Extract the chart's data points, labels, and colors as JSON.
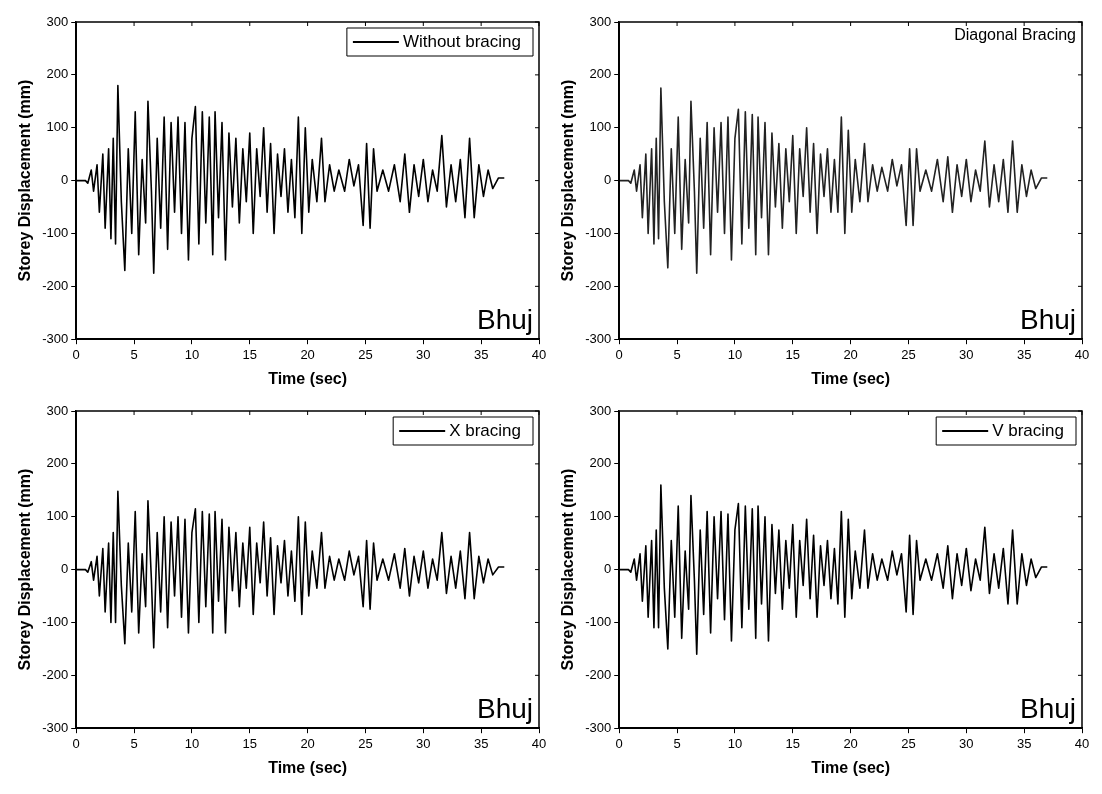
{
  "chart_data": [
    {
      "type": "line",
      "xlabel": "Time (sec)",
      "ylabel": "Storey Displacement (mm)",
      "xlim": [
        0,
        40
      ],
      "xticks": [
        0,
        5,
        10,
        15,
        20,
        25,
        30,
        35,
        40
      ],
      "ylim": [
        -300,
        300
      ],
      "yticks": [
        -300,
        -200,
        -100,
        0,
        100,
        200,
        300
      ],
      "grid": false,
      "legend": "top right",
      "marker": "none",
      "annotations": [
        "Bhuj"
      ],
      "x": [
        0,
        0.8,
        1.0,
        1.3,
        1.5,
        1.8,
        2.0,
        2.3,
        2.5,
        2.8,
        3.0,
        3.2,
        3.4,
        3.6,
        3.9,
        4.2,
        4.5,
        4.8,
        5.1,
        5.4,
        5.7,
        6.0,
        6.2,
        6.5,
        6.7,
        7.0,
        7.3,
        7.6,
        7.9,
        8.2,
        8.5,
        8.8,
        9.1,
        9.4,
        9.7,
        10.0,
        10.3,
        10.6,
        10.9,
        11.2,
        11.5,
        11.8,
        12.0,
        12.3,
        12.6,
        12.9,
        13.2,
        13.5,
        13.8,
        14.1,
        14.4,
        14.7,
        15.0,
        15.3,
        15.6,
        15.9,
        16.2,
        16.5,
        16.8,
        17.1,
        17.4,
        17.7,
        18.0,
        18.3,
        18.6,
        18.9,
        19.2,
        19.5,
        19.8,
        20.1,
        20.4,
        20.8,
        21.2,
        21.5,
        21.9,
        22.3,
        22.7,
        23.2,
        23.6,
        24.0,
        24.4,
        24.8,
        25.1,
        25.4,
        25.7,
        26.0,
        26.5,
        27.0,
        27.5,
        28.0,
        28.4,
        28.8,
        29.2,
        29.6,
        30.0,
        30.4,
        30.8,
        31.2,
        31.6,
        32.0,
        32.4,
        32.8,
        33.2,
        33.6,
        34.0,
        34.4,
        34.8,
        35.2,
        35.6,
        36.0,
        36.5,
        37.0
      ],
      "series": [
        {
          "name": "Without bracing",
          "color": "#000000",
          "values": [
            0,
            0,
            -5,
            20,
            -20,
            30,
            -60,
            50,
            -90,
            60,
            -110,
            80,
            -120,
            180,
            -40,
            -170,
            60,
            -100,
            130,
            -140,
            40,
            -80,
            150,
            -20,
            -175,
            80,
            -90,
            120,
            -130,
            110,
            -60,
            120,
            -100,
            110,
            -150,
            80,
            140,
            -120,
            130,
            -80,
            120,
            -140,
            130,
            -70,
            110,
            -150,
            90,
            -50,
            80,
            -80,
            60,
            -40,
            90,
            -100,
            60,
            -30,
            100,
            -60,
            70,
            -100,
            50,
            -30,
            60,
            -60,
            40,
            -70,
            120,
            -100,
            100,
            -60,
            40,
            -40,
            80,
            -40,
            30,
            -20,
            20,
            -20,
            40,
            -10,
            30,
            -85,
            70,
            -90,
            60,
            -20,
            20,
            -20,
            30,
            -40,
            50,
            -60,
            30,
            -30,
            40,
            -40,
            20,
            -20,
            85,
            -50,
            30,
            -40,
            40,
            -70,
            80,
            -70,
            30,
            -30,
            20,
            -15,
            5,
            5
          ]
        }
      ]
    },
    {
      "type": "line",
      "xlabel": "Time (sec)",
      "ylabel": "Storey Displacement (mm)",
      "xlim": [
        0,
        40
      ],
      "xticks": [
        0,
        5,
        10,
        15,
        20,
        25,
        30,
        35,
        40
      ],
      "ylim": [
        -300,
        300
      ],
      "yticks": [
        -300,
        -200,
        -100,
        0,
        100,
        200,
        300
      ],
      "grid": false,
      "marker": "none",
      "annotations": [
        "Bhuj",
        "Diagonal Bracing"
      ],
      "x": [
        0,
        0.8,
        1.0,
        1.3,
        1.5,
        1.8,
        2.0,
        2.3,
        2.5,
        2.8,
        3.0,
        3.2,
        3.4,
        3.6,
        3.9,
        4.2,
        4.5,
        4.8,
        5.1,
        5.4,
        5.7,
        6.0,
        6.2,
        6.5,
        6.7,
        7.0,
        7.3,
        7.6,
        7.9,
        8.2,
        8.5,
        8.8,
        9.1,
        9.4,
        9.7,
        10.0,
        10.3,
        10.6,
        10.9,
        11.2,
        11.5,
        11.8,
        12.0,
        12.3,
        12.6,
        12.9,
        13.2,
        13.5,
        13.8,
        14.1,
        14.4,
        14.7,
        15.0,
        15.3,
        15.6,
        15.9,
        16.2,
        16.5,
        16.8,
        17.1,
        17.4,
        17.7,
        18.0,
        18.3,
        18.6,
        18.9,
        19.2,
        19.5,
        19.8,
        20.1,
        20.4,
        20.8,
        21.2,
        21.5,
        21.9,
        22.3,
        22.7,
        23.2,
        23.6,
        24.0,
        24.4,
        24.8,
        25.1,
        25.4,
        25.7,
        26.0,
        26.5,
        27.0,
        27.5,
        28.0,
        28.4,
        28.8,
        29.2,
        29.6,
        30.0,
        30.4,
        30.8,
        31.2,
        31.6,
        32.0,
        32.4,
        32.8,
        33.2,
        33.6,
        34.0,
        34.4,
        34.8,
        35.2,
        35.6,
        36.0,
        36.5,
        37.0
      ],
      "series": [
        {
          "color": "#222222",
          "values": [
            0,
            0,
            -5,
            20,
            -20,
            30,
            -70,
            50,
            -100,
            60,
            -120,
            80,
            -110,
            175,
            -40,
            -165,
            60,
            -100,
            120,
            -130,
            40,
            -80,
            150,
            -20,
            -175,
            80,
            -90,
            110,
            -140,
            100,
            -60,
            110,
            -100,
            120,
            -150,
            80,
            135,
            -120,
            130,
            -90,
            125,
            -140,
            120,
            -70,
            110,
            -140,
            90,
            -50,
            70,
            -90,
            60,
            -40,
            85,
            -100,
            60,
            -30,
            100,
            -60,
            70,
            -100,
            50,
            -30,
            60,
            -60,
            40,
            -60,
            120,
            -100,
            95,
            -60,
            40,
            -40,
            70,
            -40,
            30,
            -20,
            25,
            -20,
            40,
            -10,
            30,
            -85,
            60,
            -85,
            60,
            -20,
            20,
            -20,
            40,
            -40,
            45,
            -60,
            30,
            -30,
            40,
            -40,
            20,
            -20,
            75,
            -50,
            30,
            -40,
            40,
            -60,
            75,
            -60,
            30,
            -30,
            20,
            -15,
            5,
            5
          ]
        }
      ]
    },
    {
      "type": "line",
      "xlabel": "Time (sec)",
      "ylabel": "Storey Displacement (mm)",
      "xlim": [
        0,
        40
      ],
      "xticks": [
        0,
        5,
        10,
        15,
        20,
        25,
        30,
        35,
        40
      ],
      "ylim": [
        -300,
        300
      ],
      "yticks": [
        -300,
        -200,
        -100,
        0,
        100,
        200,
        300
      ],
      "grid": false,
      "legend": "top right",
      "marker": "none",
      "annotations": [
        "Bhuj"
      ],
      "x": [
        0,
        0.8,
        1.0,
        1.3,
        1.5,
        1.8,
        2.0,
        2.3,
        2.5,
        2.8,
        3.0,
        3.2,
        3.4,
        3.6,
        3.9,
        4.2,
        4.5,
        4.8,
        5.1,
        5.4,
        5.7,
        6.0,
        6.2,
        6.5,
        6.7,
        7.0,
        7.3,
        7.6,
        7.9,
        8.2,
        8.5,
        8.8,
        9.1,
        9.4,
        9.7,
        10.0,
        10.3,
        10.6,
        10.9,
        11.2,
        11.5,
        11.8,
        12.0,
        12.3,
        12.6,
        12.9,
        13.2,
        13.5,
        13.8,
        14.1,
        14.4,
        14.7,
        15.0,
        15.3,
        15.6,
        15.9,
        16.2,
        16.5,
        16.8,
        17.1,
        17.4,
        17.7,
        18.0,
        18.3,
        18.6,
        18.9,
        19.2,
        19.5,
        19.8,
        20.1,
        20.4,
        20.8,
        21.2,
        21.5,
        21.9,
        22.3,
        22.7,
        23.2,
        23.6,
        24.0,
        24.4,
        24.8,
        25.1,
        25.4,
        25.7,
        26.0,
        26.5,
        27.0,
        27.5,
        28.0,
        28.4,
        28.8,
        29.2,
        29.6,
        30.0,
        30.4,
        30.8,
        31.2,
        31.6,
        32.0,
        32.4,
        32.8,
        33.2,
        33.6,
        34.0,
        34.4,
        34.8,
        35.2,
        35.6,
        36.0,
        36.5,
        37.0
      ],
      "series": [
        {
          "name": "X bracing",
          "color": "#000000",
          "values": [
            0,
            0,
            -5,
            15,
            -20,
            25,
            -50,
            40,
            -80,
            50,
            -100,
            70,
            -100,
            148,
            -30,
            -140,
            50,
            -80,
            110,
            -120,
            30,
            -70,
            130,
            -20,
            -148,
            70,
            -80,
            100,
            -110,
            90,
            -50,
            100,
            -90,
            95,
            -120,
            70,
            115,
            -100,
            110,
            -70,
            105,
            -120,
            110,
            -60,
            95,
            -120,
            80,
            -40,
            70,
            -70,
            50,
            -35,
            80,
            -85,
            50,
            -25,
            90,
            -50,
            60,
            -85,
            45,
            -25,
            55,
            -50,
            35,
            -60,
            100,
            -85,
            90,
            -50,
            35,
            -35,
            70,
            -35,
            25,
            -20,
            20,
            -20,
            35,
            -10,
            25,
            -70,
            55,
            -75,
            50,
            -20,
            20,
            -20,
            30,
            -35,
            40,
            -50,
            25,
            -25,
            35,
            -35,
            20,
            -20,
            70,
            -45,
            25,
            -35,
            35,
            -55,
            70,
            -55,
            25,
            -25,
            20,
            -10,
            5,
            5
          ]
        }
      ]
    },
    {
      "type": "line",
      "xlabel": "Time (sec)",
      "ylabel": "Storey Displacement (mm)",
      "xlim": [
        0,
        40
      ],
      "xticks": [
        0,
        5,
        10,
        15,
        20,
        25,
        30,
        35,
        40
      ],
      "ylim": [
        -300,
        300
      ],
      "yticks": [
        -300,
        -200,
        -100,
        0,
        100,
        200,
        300
      ],
      "grid": false,
      "legend": "top right",
      "marker": "none",
      "annotations": [
        "Bhuj"
      ],
      "x": [
        0,
        0.8,
        1.0,
        1.3,
        1.5,
        1.8,
        2.0,
        2.3,
        2.5,
        2.8,
        3.0,
        3.2,
        3.4,
        3.6,
        3.9,
        4.2,
        4.5,
        4.8,
        5.1,
        5.4,
        5.7,
        6.0,
        6.2,
        6.5,
        6.7,
        7.0,
        7.3,
        7.6,
        7.9,
        8.2,
        8.5,
        8.8,
        9.1,
        9.4,
        9.7,
        10.0,
        10.3,
        10.6,
        10.9,
        11.2,
        11.5,
        11.8,
        12.0,
        12.3,
        12.6,
        12.9,
        13.2,
        13.5,
        13.8,
        14.1,
        14.4,
        14.7,
        15.0,
        15.3,
        15.6,
        15.9,
        16.2,
        16.5,
        16.8,
        17.1,
        17.4,
        17.7,
        18.0,
        18.3,
        18.6,
        18.9,
        19.2,
        19.5,
        19.8,
        20.1,
        20.4,
        20.8,
        21.2,
        21.5,
        21.9,
        22.3,
        22.7,
        23.2,
        23.6,
        24.0,
        24.4,
        24.8,
        25.1,
        25.4,
        25.7,
        26.0,
        26.5,
        27.0,
        27.5,
        28.0,
        28.4,
        28.8,
        29.2,
        29.6,
        30.0,
        30.4,
        30.8,
        31.2,
        31.6,
        32.0,
        32.4,
        32.8,
        33.2,
        33.6,
        34.0,
        34.4,
        34.8,
        35.2,
        35.6,
        36.0,
        36.5,
        37.0
      ],
      "series": [
        {
          "name": "V bracing",
          "color": "#000000",
          "values": [
            0,
            0,
            -5,
            20,
            -20,
            30,
            -60,
            45,
            -90,
            55,
            -110,
            75,
            -110,
            160,
            -35,
            -150,
            55,
            -90,
            120,
            -130,
            35,
            -75,
            140,
            -20,
            -160,
            75,
            -85,
            110,
            -120,
            100,
            -55,
            110,
            -95,
            105,
            -135,
            75,
            125,
            -110,
            120,
            -75,
            115,
            -130,
            120,
            -65,
            100,
            -135,
            85,
            -45,
            75,
            -75,
            55,
            -35,
            85,
            -90,
            55,
            -30,
            95,
            -55,
            65,
            -90,
            45,
            -30,
            55,
            -55,
            40,
            -65,
            110,
            -90,
            95,
            -55,
            35,
            -35,
            75,
            -35,
            30,
            -20,
            20,
            -20,
            35,
            -10,
            30,
            -80,
            65,
            -85,
            55,
            -20,
            20,
            -20,
            30,
            -35,
            45,
            -55,
            30,
            -30,
            40,
            -40,
            20,
            -20,
            80,
            -45,
            30,
            -35,
            40,
            -65,
            75,
            -65,
            30,
            -30,
            20,
            -15,
            5,
            5
          ]
        }
      ]
    }
  ]
}
